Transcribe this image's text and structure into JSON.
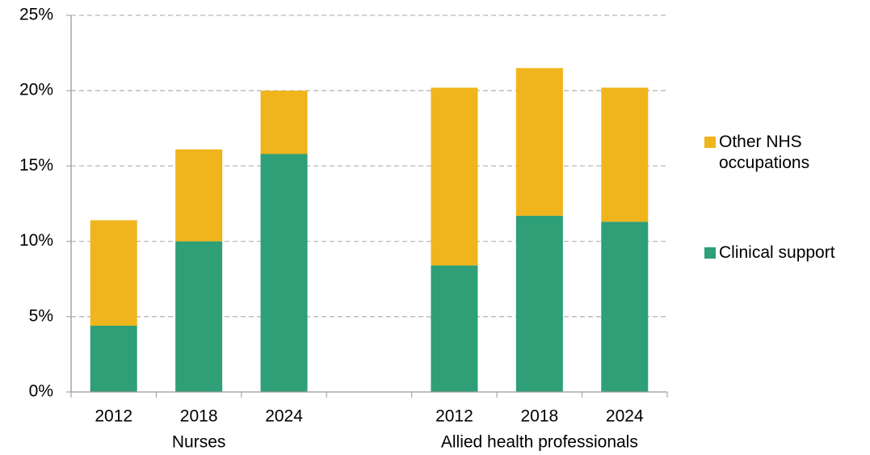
{
  "chart_data": {
    "type": "stacked_bar",
    "categories": [
      "2012",
      "2018",
      "2024",
      null,
      "2012",
      "2018",
      "2024"
    ],
    "group_labels": [
      "Nurses",
      "Allied health professionals"
    ],
    "series": [
      {
        "name": "Clinical support",
        "color": "#2e9f77",
        "values": [
          4.4,
          10.0,
          15.8,
          null,
          8.4,
          11.7,
          11.3
        ]
      },
      {
        "name": "Other NHS occupations",
        "color": "#f0b41c",
        "values": [
          7.0,
          6.1,
          4.2,
          null,
          11.8,
          9.8,
          8.9
        ]
      }
    ],
    "ylim": [
      0,
      25
    ],
    "yticks": [
      {
        "value": 0,
        "label": "0%"
      },
      {
        "value": 5,
        "label": "5%"
      },
      {
        "value": 10,
        "label": "10%"
      },
      {
        "value": 15,
        "label": "15%"
      },
      {
        "value": 20,
        "label": "20%"
      },
      {
        "value": 25,
        "label": "25%"
      }
    ],
    "grid": true,
    "legend": "right"
  }
}
